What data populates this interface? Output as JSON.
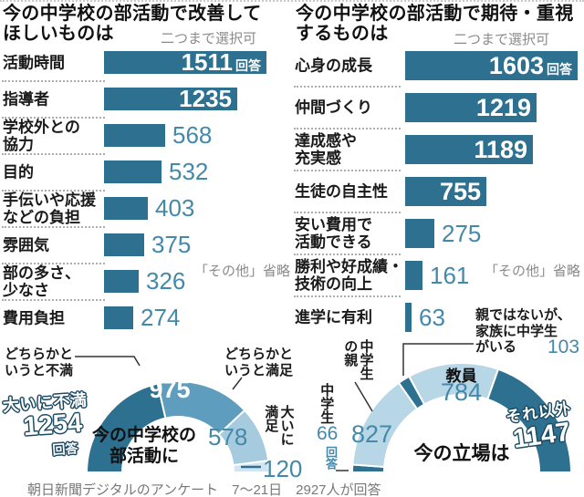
{
  "chart_data": [
    {
      "id": "improve_bar",
      "type": "bar",
      "title": "今の中学校の部活動で改善してほしいものは",
      "note": "二つまで選択可",
      "omitted_note": "「その他」省略",
      "unit": "回答",
      "categories": [
        "活動時間",
        "指導者",
        "学校外との協力",
        "目的",
        "手伝いや応援などの負担",
        "雰囲気",
        "部の多さ、少なさ",
        "費用負担"
      ],
      "values": [
        1511,
        1235,
        568,
        532,
        403,
        375,
        326,
        274
      ],
      "xlim": [
        0,
        1650
      ],
      "bar_color": "#2d7090"
    },
    {
      "id": "expect_bar",
      "type": "bar",
      "title": "今の中学校の部活動で期待・重視するものは",
      "note": "二つまで選択可",
      "omitted_note": "「その他」省略",
      "unit": "回答",
      "categories": [
        "心身の成長",
        "仲間づくり",
        "達成感や充実感",
        "生徒の自主性",
        "安い費用で活動できる",
        "勝利や好成績・技術の向上",
        "進学に有利"
      ],
      "values": [
        1603,
        1219,
        1189,
        755,
        275,
        161,
        63
      ],
      "xlim": [
        0,
        1650
      ],
      "bar_color": "#2d7090"
    },
    {
      "id": "satisfaction_donut",
      "type": "pie",
      "title": "今の中学校の部活動に",
      "unit": "回答",
      "categories": [
        "大いに不満",
        "どちらかというと不満",
        "どちらかというと満足",
        "大いに満足"
      ],
      "values": [
        1254,
        975,
        578,
        120
      ],
      "colors": [
        "#2d7090",
        "#5f9dbe",
        "#a6cbdf",
        "#d2e4ef"
      ],
      "shape": "half-donut"
    },
    {
      "id": "position_donut",
      "type": "pie",
      "title": "今の立場は",
      "unit": "回答",
      "categories": [
        "中学生",
        "中学生の親",
        "親ではないが、家族に中学生がいる",
        "教員",
        "それ以外"
      ],
      "values": [
        66,
        827,
        103,
        784,
        1147
      ],
      "colors": [
        "#2d7090",
        "#b7d6e6",
        "#2d7090",
        "#b7d6e6",
        "#2d7090"
      ],
      "shape": "half-donut"
    }
  ],
  "ui": {
    "left_chart": {
      "title1": "今の中学校の部活動で改善して",
      "title2": "ほしいものは",
      "note": "二つまで選択可",
      "other": "「その他」省略",
      "unit": "回答",
      "bar_labels": [
        "活動時間",
        "指導者",
        "学校外との\n協力",
        "目的",
        "手伝いや応援\nなどの負担",
        "雰囲気",
        "部の多さ、\n少なさ",
        "費用負担"
      ]
    },
    "right_chart": {
      "title1": "今の中学校の部活動で期待・重視",
      "title2": "するものは",
      "note": "二つまで選択可",
      "other": "「その他」省略",
      "unit": "回答",
      "bar_labels": [
        "心身の成長",
        "仲間づくり",
        "達成感や\n充実感",
        "生徒の自主性",
        "安い費用で\n活動できる",
        "勝利や好成績・\n技術の向上",
        "進学に有利"
      ]
    },
    "left_donut": {
      "center1": "今の中学校の",
      "center2": "部活動に",
      "seg1_label": "大いに不満",
      "seg1_value": "1254",
      "seg1_unit": "回答",
      "seg2_callout": "どちらかと\nいうと不満",
      "seg2_value": "975",
      "seg3_callout": "どちらかと\nいうと満足",
      "seg3_value": "578",
      "seg4_label": "大いに\n満足",
      "seg4_value": "120"
    },
    "right_donut": {
      "center": "今の立場は",
      "student_label": "中学生",
      "student_value": "66",
      "student_unit": "回答",
      "parent_label": "中学生\nの親",
      "parent_value": "827",
      "family_label": "親ではないが、\n家族に中学生\nがいる",
      "family_value": "103",
      "teacher_label": "教員",
      "teacher_value": "784",
      "other_label": "それ以外",
      "other_value": "1147"
    },
    "footer": "朝日新聞デジタルのアンケート　7〜21日　2927人が回答"
  },
  "colors": {
    "bar": "#2d7090",
    "number_teal": "#4488aa",
    "donut_dark": "#2d7090",
    "donut_medium": "#5f9dbe",
    "donut_light": "#a6cbdf",
    "donut_lighter": "#d2e4ef",
    "donut_light_right": "#b7d6e6",
    "note_gray": "#8a8a8a"
  }
}
